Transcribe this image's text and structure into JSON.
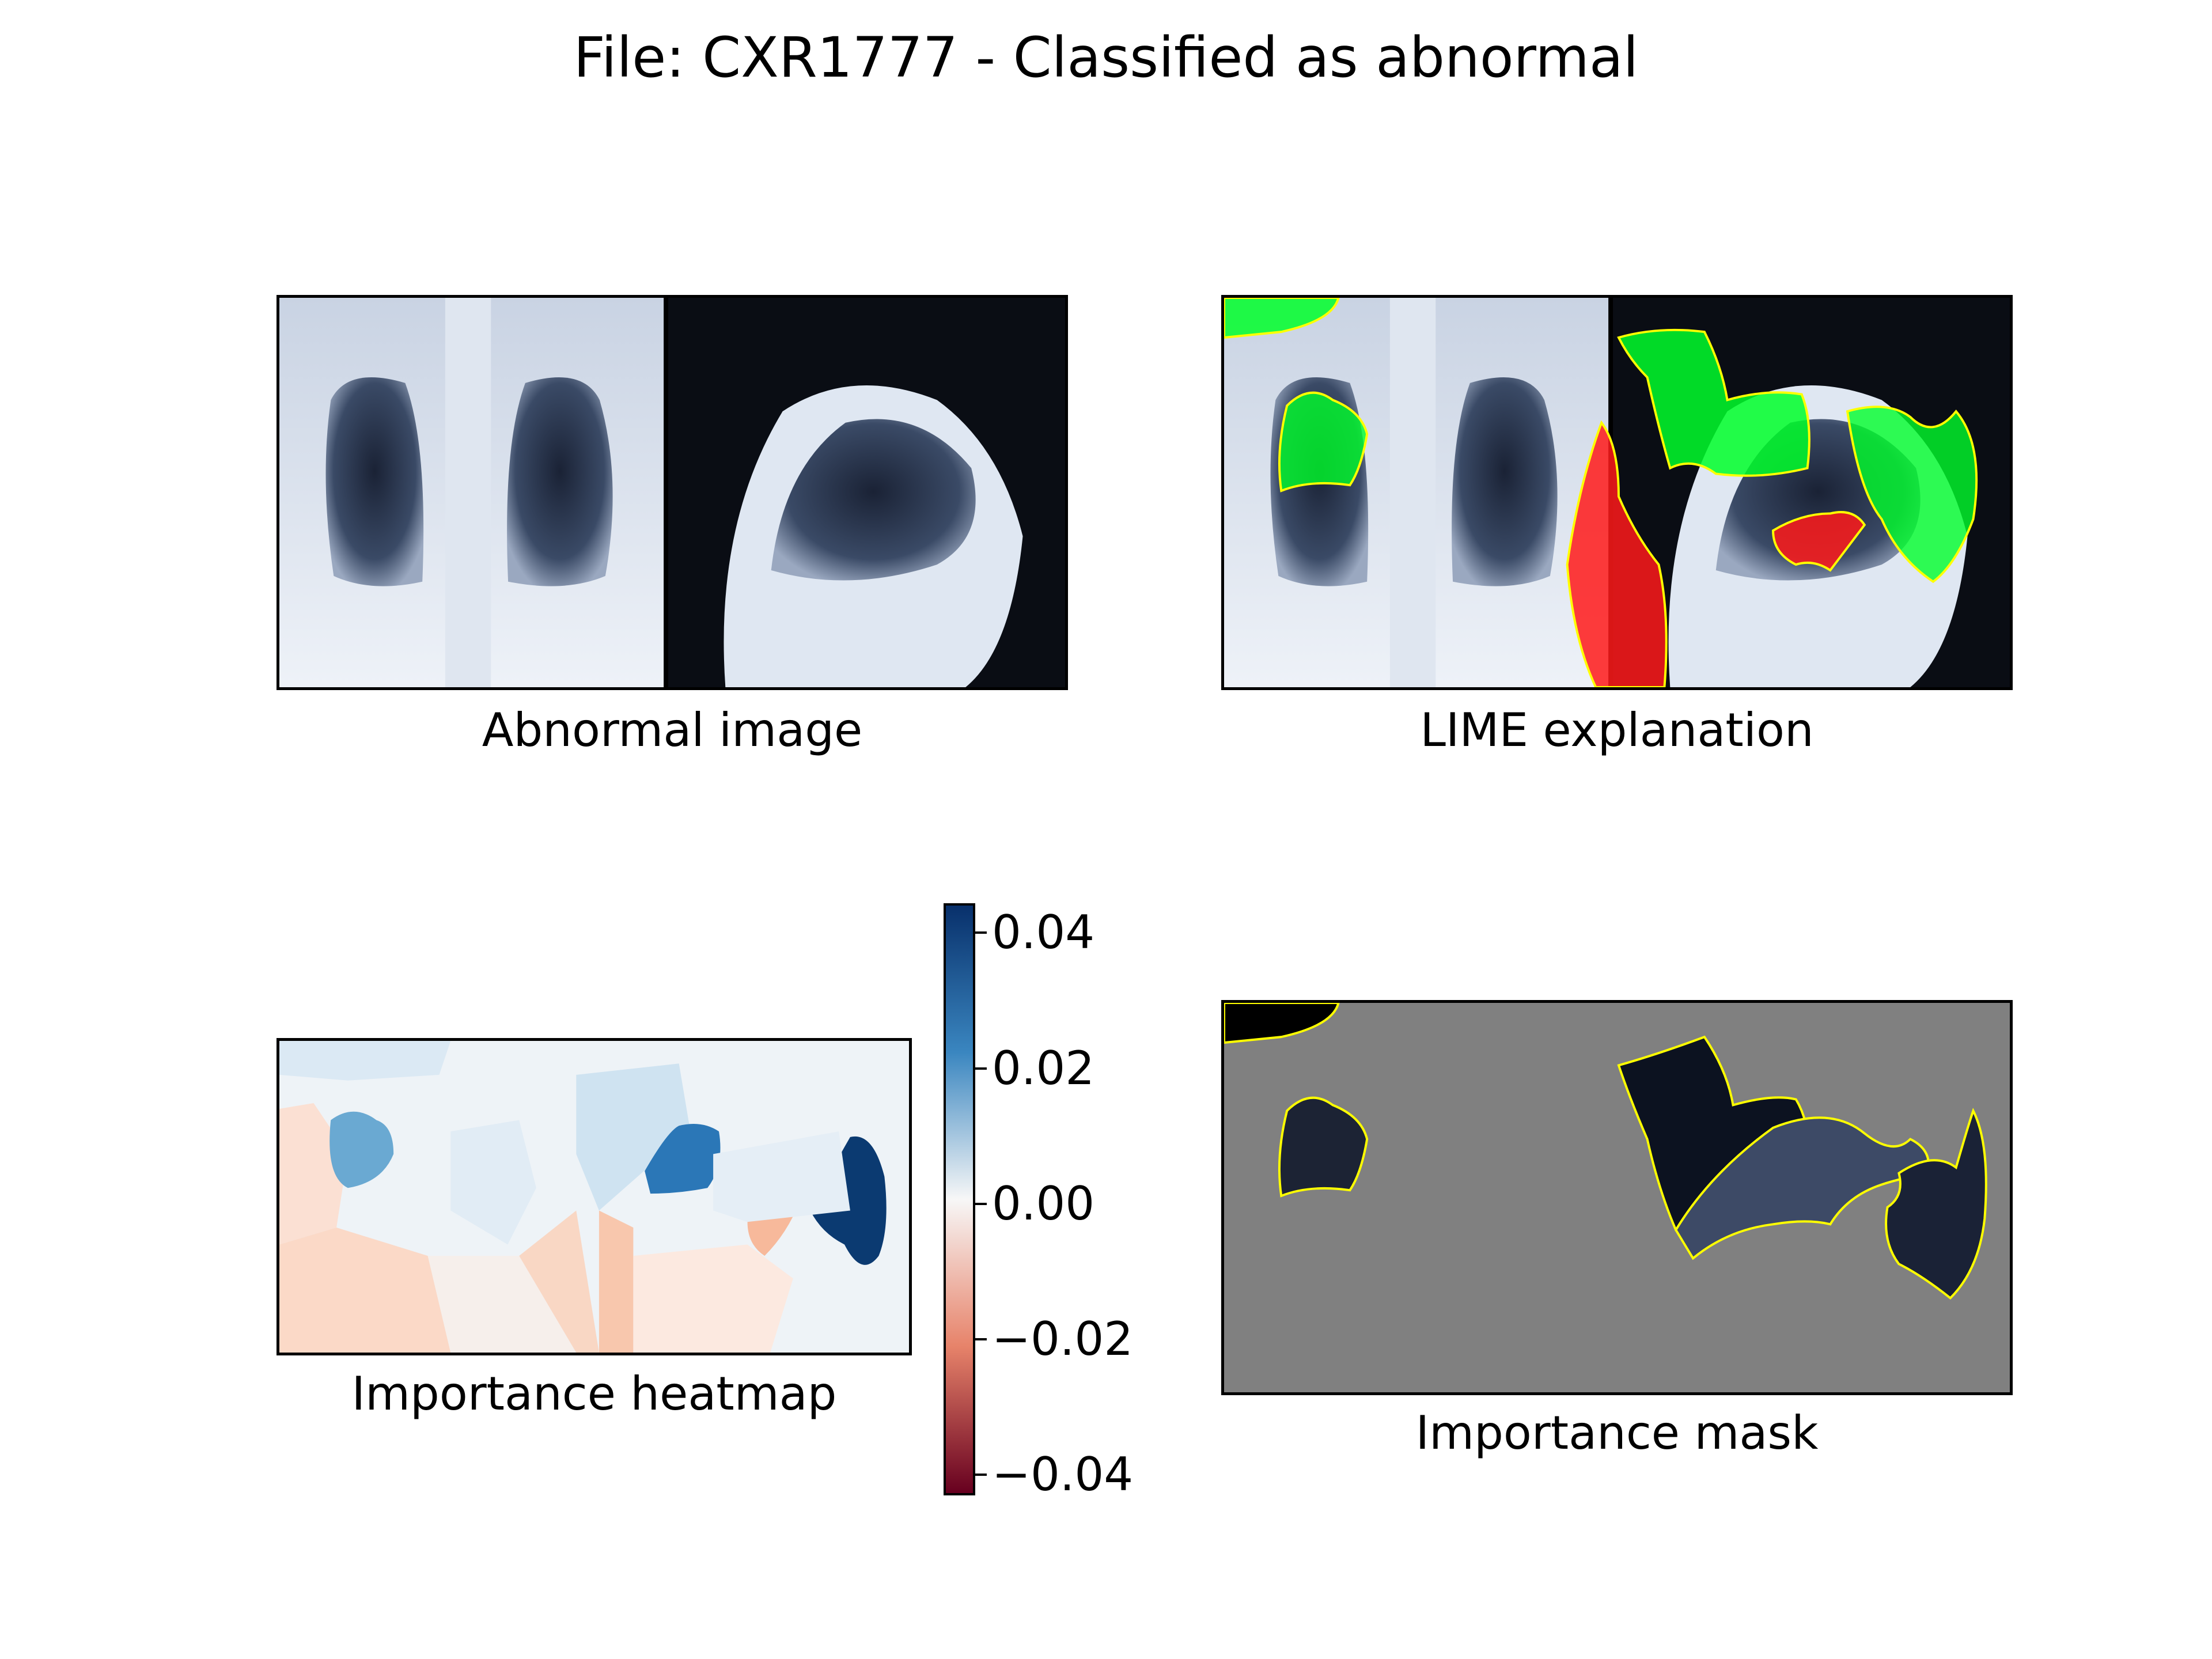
{
  "title": "File: CXR1777 - Classified as abnormal",
  "panels": {
    "abnormal": {
      "caption": "Abnormal image"
    },
    "lime": {
      "caption": "LIME explanation"
    },
    "heatmap": {
      "caption": "Importance heatmap"
    },
    "mask": {
      "caption": "Importance mask"
    }
  },
  "colorbar": {
    "min": -0.043,
    "max": 0.043,
    "ticks": [
      "0.04",
      "0.02",
      "0.00",
      "−0.02",
      "−0.04"
    ],
    "colors": {
      "top": "#08306b",
      "mid": "#f7f7f7",
      "bottom": "#67001f"
    }
  },
  "colors": {
    "positive_region": "#00ff2a",
    "negative_region": "#ff1a1a",
    "boundary": "#ffff00",
    "mask_background": "#808080"
  }
}
